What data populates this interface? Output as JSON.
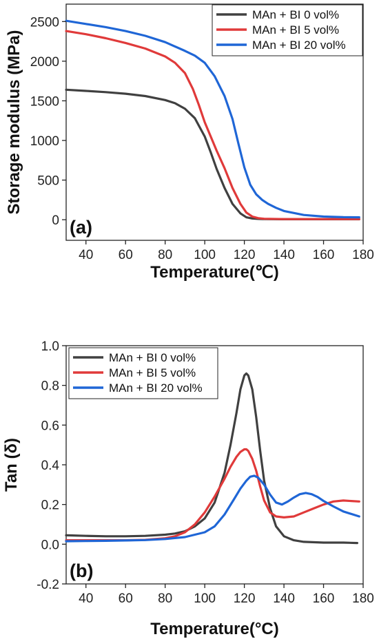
{
  "chart_data": [
    {
      "type": "line",
      "panel_label": "(a)",
      "xlabel": "Temperature(℃)",
      "ylabel": "Storage modulus (MPa)",
      "xlim": [
        30,
        180
      ],
      "ylim": [
        -260,
        2720
      ],
      "xticks": [
        40,
        60,
        80,
        100,
        120,
        140,
        160,
        180
      ],
      "yticks": [
        0,
        500,
        1000,
        1500,
        2000,
        2500
      ],
      "grid": false,
      "legend_position": "top-right",
      "series": [
        {
          "name": "MAn + BI 0 vol%",
          "color": "#404040",
          "x": [
            30,
            40,
            50,
            60,
            70,
            80,
            85,
            90,
            95,
            100,
            103,
            106,
            110,
            114,
            118,
            121,
            124,
            127,
            130,
            140,
            150,
            160,
            170,
            178
          ],
          "y": [
            1640,
            1625,
            1610,
            1590,
            1560,
            1510,
            1470,
            1400,
            1280,
            1050,
            850,
            640,
            400,
            200,
            80,
            30,
            15,
            10,
            8,
            6,
            6,
            6,
            6,
            6
          ]
        },
        {
          "name": "MAn + BI 5 vol%",
          "color": "#e03a3a",
          "x": [
            30,
            40,
            50,
            60,
            70,
            80,
            85,
            90,
            94,
            97,
            100,
            103,
            106,
            110,
            114,
            118,
            121,
            124,
            127,
            130,
            140,
            150,
            160,
            170,
            178
          ],
          "y": [
            2380,
            2340,
            2290,
            2230,
            2160,
            2060,
            1980,
            1850,
            1650,
            1450,
            1230,
            1050,
            870,
            650,
            400,
            200,
            90,
            40,
            20,
            12,
            8,
            8,
            8,
            8,
            8
          ]
        },
        {
          "name": "MAn + BI 20 vol%",
          "color": "#1f66d6",
          "x": [
            30,
            40,
            50,
            60,
            70,
            80,
            90,
            95,
            100,
            105,
            110,
            114,
            117,
            120,
            123,
            126,
            129,
            132,
            136,
            140,
            150,
            160,
            170,
            178
          ],
          "y": [
            2510,
            2470,
            2430,
            2380,
            2320,
            2240,
            2130,
            2070,
            1980,
            1810,
            1560,
            1270,
            960,
            660,
            440,
            320,
            250,
            200,
            150,
            110,
            60,
            40,
            32,
            30
          ]
        }
      ]
    },
    {
      "type": "line",
      "panel_label": "(b)",
      "xlabel": "Temperature(°C)",
      "ylabel": "Tan (δ)",
      "xlim": [
        30,
        180
      ],
      "ylim": [
        -0.2,
        1.0
      ],
      "xticks": [
        40,
        60,
        80,
        100,
        120,
        140,
        160,
        180
      ],
      "yticks": [
        -0.2,
        0.0,
        0.2,
        0.4,
        0.6,
        0.8,
        1.0
      ],
      "grid": false,
      "legend_position": "top-left",
      "series": [
        {
          "name": "MAn + BI 0 vol%",
          "color": "#404040",
          "x": [
            30,
            40,
            50,
            60,
            70,
            80,
            85,
            90,
            95,
            100,
            105,
            110,
            113,
            116,
            118,
            120,
            121,
            122,
            124,
            126,
            128,
            130,
            133,
            136,
            140,
            145,
            150,
            160,
            170,
            177
          ],
          "y": [
            0.045,
            0.042,
            0.04,
            0.04,
            0.042,
            0.048,
            0.054,
            0.065,
            0.09,
            0.13,
            0.21,
            0.36,
            0.5,
            0.66,
            0.78,
            0.85,
            0.86,
            0.85,
            0.78,
            0.64,
            0.47,
            0.32,
            0.18,
            0.09,
            0.04,
            0.02,
            0.012,
            0.008,
            0.008,
            0.006
          ]
        },
        {
          "name": "MAn + BI 5 vol%",
          "color": "#e03a3a",
          "x": [
            30,
            40,
            50,
            60,
            70,
            80,
            85,
            90,
            95,
            100,
            105,
            110,
            113,
            116,
            118,
            120,
            121,
            122,
            124,
            126,
            128,
            130,
            133,
            136,
            140,
            145,
            150,
            155,
            160,
            165,
            170,
            178
          ],
          "y": [
            0.02,
            0.02,
            0.02,
            0.02,
            0.022,
            0.03,
            0.04,
            0.06,
            0.1,
            0.16,
            0.24,
            0.33,
            0.39,
            0.44,
            0.465,
            0.478,
            0.478,
            0.47,
            0.43,
            0.37,
            0.29,
            0.22,
            0.16,
            0.14,
            0.135,
            0.14,
            0.16,
            0.18,
            0.2,
            0.215,
            0.22,
            0.215
          ]
        },
        {
          "name": "MAn + BI 20 vol%",
          "color": "#1f66d6",
          "x": [
            30,
            40,
            50,
            60,
            70,
            80,
            90,
            100,
            105,
            110,
            115,
            118,
            121,
            123,
            125,
            127,
            130,
            133,
            136,
            139,
            142,
            145,
            148,
            151,
            154,
            157,
            160,
            165,
            170,
            178
          ],
          "y": [
            0.015,
            0.016,
            0.017,
            0.019,
            0.021,
            0.026,
            0.036,
            0.06,
            0.09,
            0.15,
            0.23,
            0.28,
            0.32,
            0.34,
            0.345,
            0.335,
            0.3,
            0.25,
            0.21,
            0.2,
            0.215,
            0.235,
            0.252,
            0.258,
            0.252,
            0.238,
            0.218,
            0.19,
            0.165,
            0.14
          ]
        }
      ]
    }
  ]
}
